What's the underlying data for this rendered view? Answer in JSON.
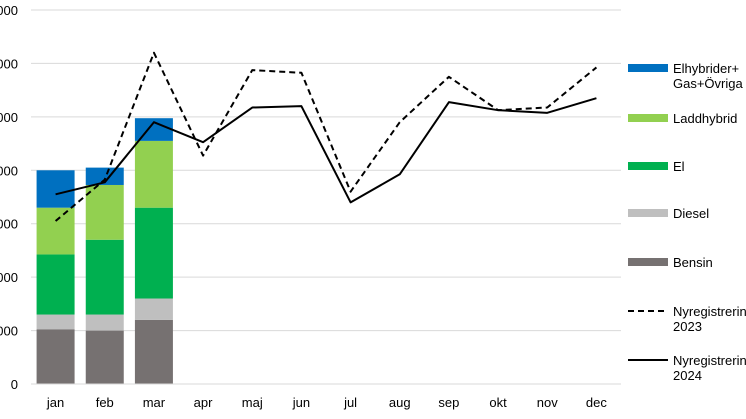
{
  "chart_data": {
    "type": "bar",
    "categories": [
      "jan",
      "feb",
      "mar",
      "apr",
      "maj",
      "jun",
      "jul",
      "aug",
      "sep",
      "okt",
      "nov",
      "dec"
    ],
    "y_tick_labels": [
      "0",
      "000",
      "000",
      "000",
      "000",
      "000",
      "000",
      "000"
    ],
    "y_tick_values": [
      0,
      4000,
      8000,
      12000,
      16000,
      20000,
      24000,
      28000
    ],
    "ylim": [
      0,
      28000
    ],
    "grid": true,
    "legend_position": "right",
    "stacked_series": [
      {
        "name": "Bensin",
        "color": "#767171",
        "values": [
          4100,
          4000,
          4800,
          null,
          null,
          null,
          null,
          null,
          null,
          null,
          null,
          null
        ]
      },
      {
        "name": "Diesel",
        "color": "#BFBFBF",
        "values": [
          1100,
          1200,
          1600,
          null,
          null,
          null,
          null,
          null,
          null,
          null,
          null,
          null
        ]
      },
      {
        "name": "El",
        "color": "#00B050",
        "values": [
          4500,
          5600,
          6800,
          null,
          null,
          null,
          null,
          null,
          null,
          null,
          null,
          null
        ]
      },
      {
        "name": "Laddhybrid",
        "color": "#92D050",
        "values": [
          3500,
          4100,
          5000,
          null,
          null,
          null,
          null,
          null,
          null,
          null,
          null,
          null
        ]
      },
      {
        "name": "Elhybrider+ Gas+Övriga",
        "color": "#0070C0",
        "values": [
          2800,
          1300,
          1700,
          null,
          null,
          null,
          null,
          null,
          null,
          null,
          null,
          null
        ]
      }
    ],
    "line_series": [
      {
        "name": "Nyregistrering 2023",
        "style": "dashed",
        "color": "#000000",
        "values": [
          12200,
          15300,
          24800,
          17100,
          23500,
          23300,
          14400,
          19600,
          23000,
          20500,
          20700,
          23700
        ]
      },
      {
        "name": "Nyregistrering 2024",
        "style": "solid",
        "color": "#000000",
        "values": [
          14200,
          15100,
          19600,
          18100,
          20700,
          20800,
          13600,
          15700,
          21100,
          20500,
          20300,
          21400
        ]
      }
    ],
    "legend": [
      {
        "key": "s4",
        "lines": [
          "Elhybrider+",
          "Gas+Övriga"
        ]
      },
      {
        "key": "s3",
        "lines": [
          "Laddhybrid"
        ]
      },
      {
        "key": "s2",
        "lines": [
          "El"
        ]
      },
      {
        "key": "s1",
        "lines": [
          "Diesel"
        ]
      },
      {
        "key": "s0",
        "lines": [
          "Bensin"
        ]
      },
      {
        "key": "l0",
        "lines": [
          "Nyregistrering",
          "2023"
        ]
      },
      {
        "key": "l1",
        "lines": [
          "Nyregistrering",
          "2024"
        ]
      }
    ]
  }
}
